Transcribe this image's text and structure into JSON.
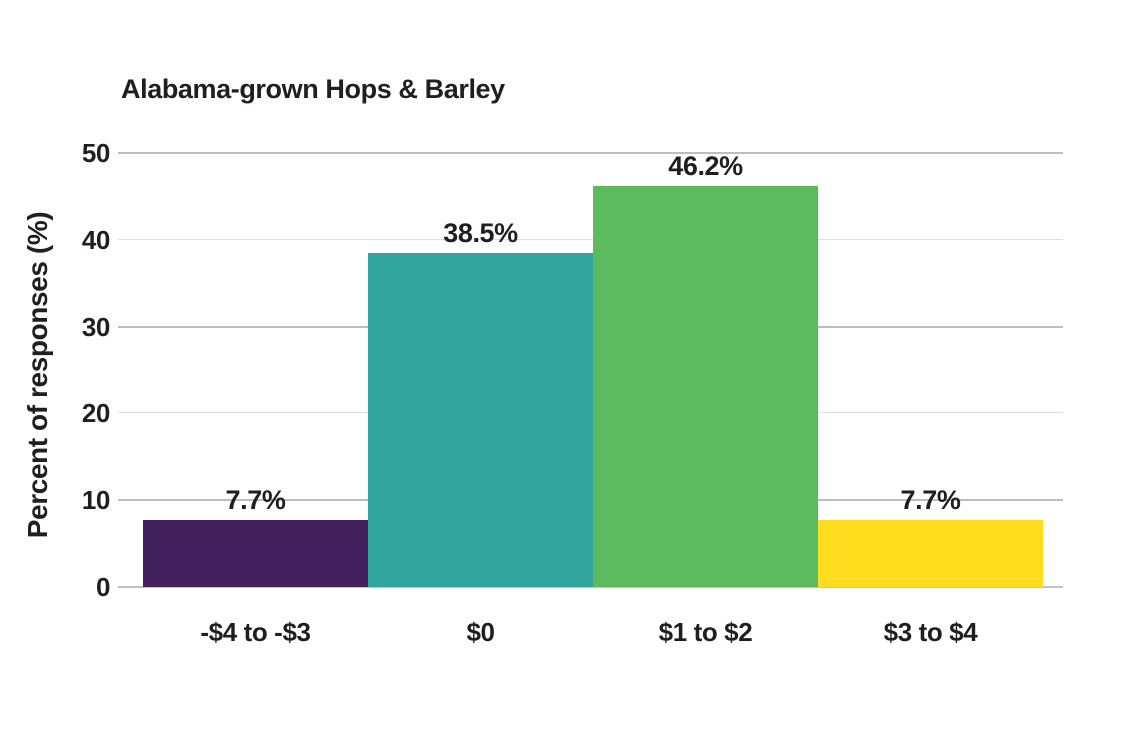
{
  "chart_data": {
    "type": "bar",
    "title": "Alabama-grown Hops & Barley",
    "xlabel": "",
    "ylabel": "Percent of responses (%)",
    "categories": [
      "-$4 to -$3",
      "$0",
      "$1 to $2",
      "$3 to $4"
    ],
    "values": [
      7.7,
      38.5,
      46.2,
      7.7
    ],
    "value_labels": [
      "7.7%",
      "38.5%",
      "46.2%",
      "7.7%"
    ],
    "bar_colors": [
      "#42215e",
      "#30a59d",
      "#5bbb5e",
      "#ffdc1e"
    ],
    "yticks": [
      0,
      10,
      20,
      30,
      40,
      50
    ],
    "ytick_labels": [
      "0",
      "10",
      "20",
      "30",
      "40",
      "50"
    ],
    "ylim": [
      0,
      50
    ],
    "grid": "horizontal",
    "legend": "none",
    "colors": {
      "background": "#ffffff",
      "text": "#221e1f",
      "grid_major": "#bdbdbd",
      "grid_minor": "#dedede",
      "baseline": "#c2c2c2"
    }
  }
}
